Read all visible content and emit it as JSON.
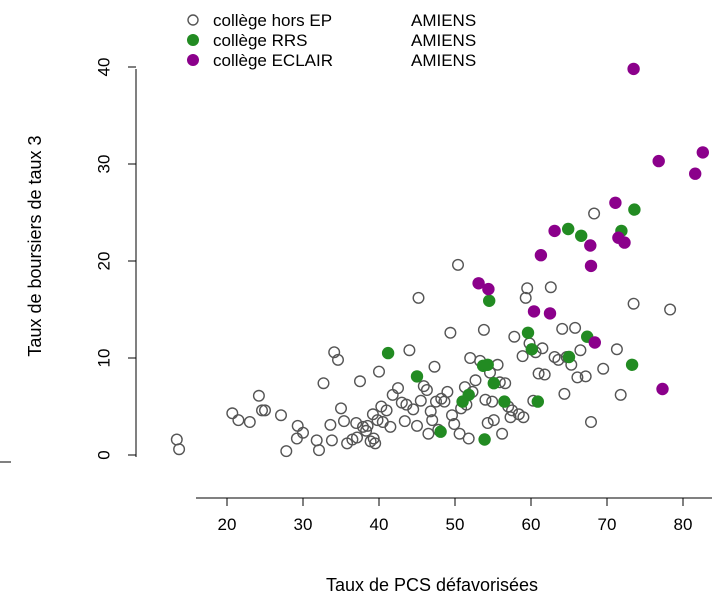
{
  "chart_data": {
    "type": "scatter",
    "title": "",
    "xlabel": "Taux de PCS défavorisées",
    "ylabel": "Taux de boursiers de taux 3",
    "xlim": [
      12,
      86
    ],
    "ylim": [
      0,
      41
    ],
    "x_ticks": [
      "20",
      "30",
      "40",
      "50",
      "60",
      "70",
      "80"
    ],
    "y_ticks": [
      "0",
      "10",
      "20",
      "30",
      "40"
    ],
    "grid": false,
    "legend_position": "top-left",
    "legend": [
      {
        "name": "collège hors EP",
        "city": "AMIENS",
        "color": "#555555",
        "marker": "open-circle"
      },
      {
        "name": "collège RRS",
        "city": "AMIENS",
        "color": "#228B22",
        "marker": "filled-circle"
      },
      {
        "name": "collège ECLAIR",
        "city": "AMIENS",
        "color": "#8B008B",
        "marker": "filled-circle"
      }
    ],
    "series": [
      {
        "name": "collège hors EP",
        "color": "#555555",
        "points": [
          [
            13.4,
            1.6
          ],
          [
            13.7,
            0.6
          ],
          [
            20.7,
            4.3
          ],
          [
            21.5,
            3.6
          ],
          [
            23.0,
            3.4
          ],
          [
            24.2,
            6.1
          ],
          [
            24.6,
            4.6
          ],
          [
            25.0,
            4.6
          ],
          [
            27.1,
            4.1
          ],
          [
            27.8,
            0.4
          ],
          [
            29.2,
            1.7
          ],
          [
            29.3,
            3.0
          ],
          [
            30.0,
            2.3
          ],
          [
            31.8,
            1.5
          ],
          [
            32.1,
            0.5
          ],
          [
            32.7,
            7.4
          ],
          [
            33.6,
            3.1
          ],
          [
            33.8,
            1.5
          ],
          [
            34.1,
            10.6
          ],
          [
            34.6,
            9.8
          ],
          [
            35.0,
            4.8
          ],
          [
            35.4,
            3.5
          ],
          [
            35.8,
            1.2
          ],
          [
            36.5,
            1.6
          ],
          [
            37.0,
            3.3
          ],
          [
            37.1,
            1.8
          ],
          [
            37.5,
            7.6
          ],
          [
            37.9,
            2.9
          ],
          [
            38.3,
            2.5
          ],
          [
            38.5,
            3.0
          ],
          [
            38.9,
            1.4
          ],
          [
            39.2,
            4.2
          ],
          [
            39.3,
            1.7
          ],
          [
            39.5,
            1.2
          ],
          [
            39.8,
            3.6
          ],
          [
            40.0,
            8.6
          ],
          [
            40.3,
            5.0
          ],
          [
            40.5,
            3.4
          ],
          [
            41.0,
            4.6
          ],
          [
            41.5,
            2.9
          ],
          [
            41.8,
            6.2
          ],
          [
            42.5,
            6.9
          ],
          [
            43.0,
            5.4
          ],
          [
            43.4,
            3.5
          ],
          [
            43.6,
            5.2
          ],
          [
            44.0,
            10.8
          ],
          [
            44.5,
            4.7
          ],
          [
            45.0,
            3.0
          ],
          [
            45.2,
            16.2
          ],
          [
            45.5,
            5.6
          ],
          [
            45.9,
            7.1
          ],
          [
            46.3,
            6.7
          ],
          [
            46.5,
            2.2
          ],
          [
            46.8,
            4.5
          ],
          [
            47.0,
            3.6
          ],
          [
            47.3,
            9.1
          ],
          [
            47.5,
            5.5
          ],
          [
            47.8,
            2.6
          ],
          [
            48.2,
            5.8
          ],
          [
            48.6,
            5.5
          ],
          [
            49.0,
            6.5
          ],
          [
            49.4,
            12.6
          ],
          [
            49.6,
            4.1
          ],
          [
            49.9,
            3.2
          ],
          [
            50.4,
            19.6
          ],
          [
            50.6,
            2.2
          ],
          [
            50.8,
            4.8
          ],
          [
            51.3,
            7.0
          ],
          [
            51.5,
            5.2
          ],
          [
            51.8,
            1.7
          ],
          [
            52.0,
            10.0
          ],
          [
            52.3,
            6.5
          ],
          [
            52.7,
            7.7
          ],
          [
            53.3,
            9.7
          ],
          [
            53.8,
            12.9
          ],
          [
            54.0,
            5.7
          ],
          [
            54.3,
            3.3
          ],
          [
            54.6,
            8.5
          ],
          [
            54.9,
            5.5
          ],
          [
            55.1,
            3.6
          ],
          [
            55.6,
            9.3
          ],
          [
            55.9,
            7.5
          ],
          [
            56.2,
            2.2
          ],
          [
            56.6,
            7.4
          ],
          [
            57.0,
            5.0
          ],
          [
            57.3,
            3.9
          ],
          [
            57.5,
            4.6
          ],
          [
            57.8,
            12.2
          ],
          [
            58.4,
            4.2
          ],
          [
            58.9,
            10.2
          ],
          [
            59.0,
            3.9
          ],
          [
            59.3,
            16.2
          ],
          [
            59.5,
            17.2
          ],
          [
            59.8,
            11.5
          ],
          [
            60.3,
            5.6
          ],
          [
            60.6,
            10.6
          ],
          [
            61.0,
            8.4
          ],
          [
            61.5,
            11.0
          ],
          [
            61.8,
            8.3
          ],
          [
            62.6,
            17.3
          ],
          [
            63.1,
            10.1
          ],
          [
            63.6,
            9.8
          ],
          [
            64.1,
            13.0
          ],
          [
            64.4,
            6.3
          ],
          [
            64.7,
            10.1
          ],
          [
            65.3,
            9.3
          ],
          [
            65.8,
            13.1
          ],
          [
            66.1,
            8.0
          ],
          [
            66.5,
            10.8
          ],
          [
            67.2,
            8.1
          ],
          [
            67.9,
            3.4
          ],
          [
            68.3,
            24.9
          ],
          [
            69.5,
            8.9
          ],
          [
            71.3,
            10.9
          ],
          [
            71.8,
            6.2
          ],
          [
            73.5,
            15.6
          ],
          [
            78.3,
            15.0
          ]
        ]
      },
      {
        "name": "collège RRS",
        "color": "#228B22",
        "points": [
          [
            41.2,
            10.5
          ],
          [
            45.0,
            8.1
          ],
          [
            48.1,
            2.4
          ],
          [
            51.0,
            5.5
          ],
          [
            51.8,
            6.2
          ],
          [
            53.7,
            9.2
          ],
          [
            53.9,
            1.6
          ],
          [
            54.3,
            9.3
          ],
          [
            54.5,
            15.9
          ],
          [
            55.1,
            7.4
          ],
          [
            56.5,
            5.5
          ],
          [
            59.6,
            12.6
          ],
          [
            60.1,
            10.9
          ],
          [
            60.9,
            5.5
          ],
          [
            64.9,
            23.3
          ],
          [
            65.0,
            10.1
          ],
          [
            66.6,
            22.6
          ],
          [
            67.4,
            12.2
          ],
          [
            71.9,
            23.1
          ],
          [
            73.3,
            9.3
          ],
          [
            73.6,
            25.3
          ]
        ]
      },
      {
        "name": "collège ECLAIR",
        "color": "#8B008B",
        "points": [
          [
            53.1,
            17.7
          ],
          [
            54.4,
            17.1
          ],
          [
            60.4,
            14.8
          ],
          [
            61.3,
            20.6
          ],
          [
            62.5,
            14.6
          ],
          [
            63.1,
            23.1
          ],
          [
            67.8,
            21.6
          ],
          [
            67.9,
            19.5
          ],
          [
            68.4,
            11.6
          ],
          [
            71.1,
            26.0
          ],
          [
            71.5,
            22.4
          ],
          [
            72.3,
            21.9
          ],
          [
            73.5,
            39.8
          ],
          [
            76.8,
            30.3
          ],
          [
            77.3,
            6.8
          ],
          [
            81.6,
            29.0
          ],
          [
            82.6,
            31.2
          ]
        ]
      }
    ]
  }
}
